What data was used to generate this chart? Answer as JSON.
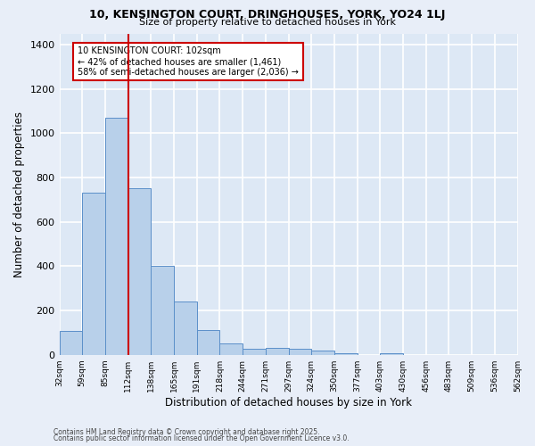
{
  "title1": "10, KENSINGTON COURT, DRINGHOUSES, YORK, YO24 1LJ",
  "title2": "Size of property relative to detached houses in York",
  "xlabel": "Distribution of detached houses by size in York",
  "ylabel": "Number of detached properties",
  "bar_values": [
    109,
    730,
    1070,
    750,
    400,
    240,
    113,
    50,
    25,
    30,
    28,
    20,
    5,
    0,
    8,
    0,
    0,
    0,
    0,
    0
  ],
  "categories": [
    "32sqm",
    "59sqm",
    "85sqm",
    "112sqm",
    "138sqm",
    "165sqm",
    "191sqm",
    "218sqm",
    "244sqm",
    "271sqm",
    "297sqm",
    "324sqm",
    "350sqm",
    "377sqm",
    "403sqm",
    "430sqm",
    "456sqm",
    "483sqm",
    "509sqm",
    "536sqm",
    "562sqm"
  ],
  "bar_color": "#b8d0ea",
  "bar_edge_color": "#5b8fc9",
  "vline_color": "#cc0000",
  "annotation_text": "10 KENSINGTON COURT: 102sqm\n← 42% of detached houses are smaller (1,461)\n58% of semi-detached houses are larger (2,036) →",
  "annotation_box_color": "#ffffff",
  "annotation_border_color": "#cc0000",
  "ylim": [
    0,
    1450
  ],
  "yticks": [
    0,
    200,
    400,
    600,
    800,
    1000,
    1200,
    1400
  ],
  "background_color": "#dde8f5",
  "grid_color": "#ffffff",
  "fig_background": "#e8eef8",
  "footer1": "Contains HM Land Registry data © Crown copyright and database right 2025.",
  "footer2": "Contains public sector information licensed under the Open Government Licence v3.0."
}
